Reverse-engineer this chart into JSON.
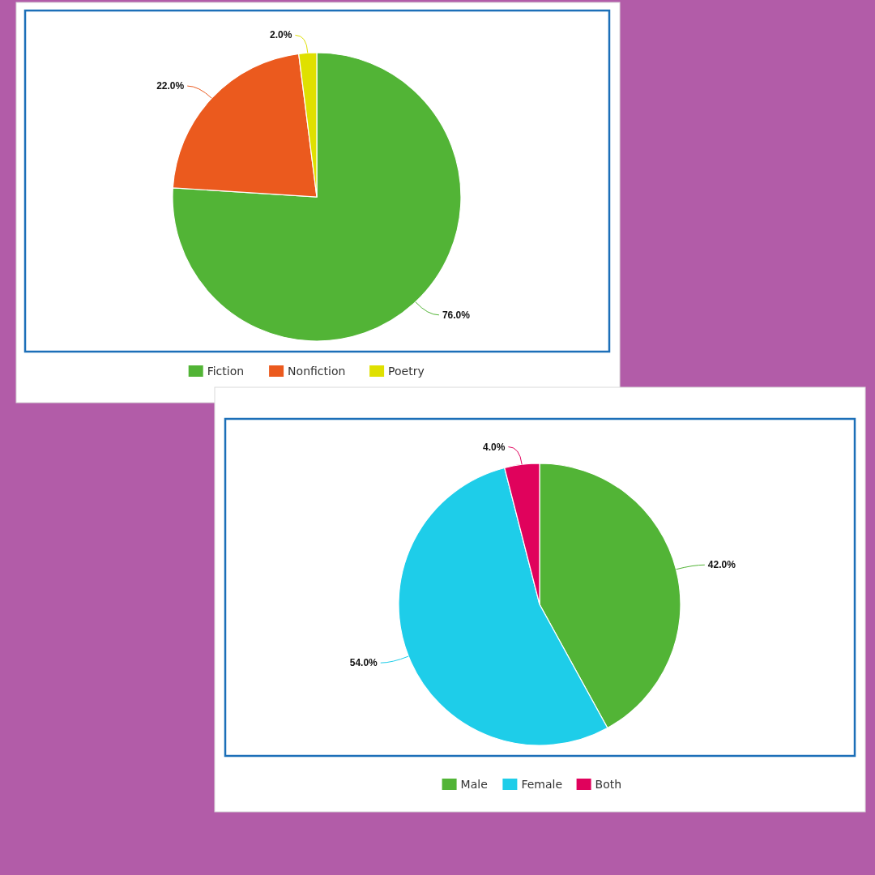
{
  "chart_data": [
    {
      "type": "pie",
      "categories": [
        "Fiction",
        "Nonfiction",
        "Poetry"
      ],
      "values": [
        76,
        22,
        2
      ],
      "colors": [
        "#52b436",
        "#eb5a1e",
        "#dfe000"
      ],
      "value_labels": [
        "76.0%",
        "22.0%",
        "2.0%"
      ],
      "legend": "bottom"
    },
    {
      "type": "pie",
      "categories": [
        "Male",
        "Female",
        "Both"
      ],
      "values": [
        42,
        54,
        4
      ],
      "colors": [
        "#52b436",
        "#1ecde9",
        "#e0025c"
      ],
      "value_labels": [
        "42.0%",
        "54.0%",
        "4.0%"
      ],
      "legend": "bottom"
    }
  ]
}
